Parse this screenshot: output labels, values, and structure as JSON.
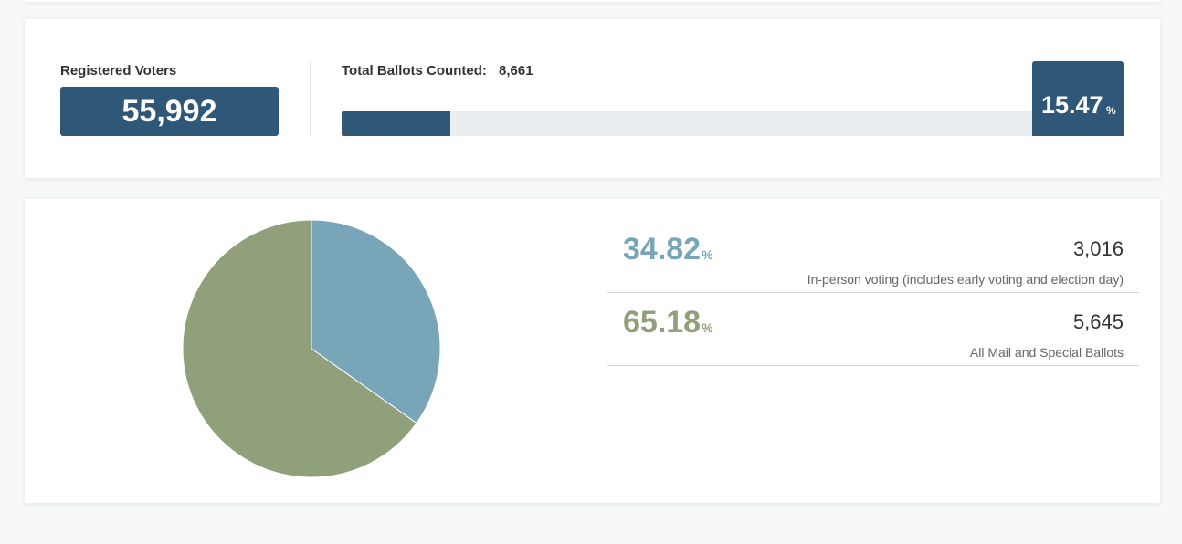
{
  "summary": {
    "registered_voters_label": "Registered Voters",
    "registered_voters_value": "55,992",
    "total_ballots_label": "Total Ballots Counted:",
    "total_ballots_value": "8,661",
    "turnout_percent": "15.47",
    "percent_symbol": "%",
    "turnout_fraction": 0.1547
  },
  "breakdown": {
    "rows": [
      {
        "percent": "34.82",
        "percent_symbol": "%",
        "count": "3,016",
        "label": "In-person voting (includes early voting and election day)",
        "color": "#78a6b8"
      },
      {
        "percent": "65.18",
        "percent_symbol": "%",
        "count": "5,645",
        "label": "All Mail and Special Ballots",
        "color": "#8fa07a"
      }
    ]
  },
  "chart_data": {
    "type": "pie",
    "categories": [
      "In-person voting (includes early voting and election day)",
      "All Mail and Special Ballots"
    ],
    "values": [
      34.82,
      65.18
    ],
    "colors": [
      "#78a6b8",
      "#8fa07a"
    ],
    "start": "top",
    "direction": "clockwise"
  },
  "colors": {
    "accent": "#2e5778",
    "in_person": "#78a6b8",
    "mail": "#8fa07a",
    "track": "#e9edf0"
  }
}
